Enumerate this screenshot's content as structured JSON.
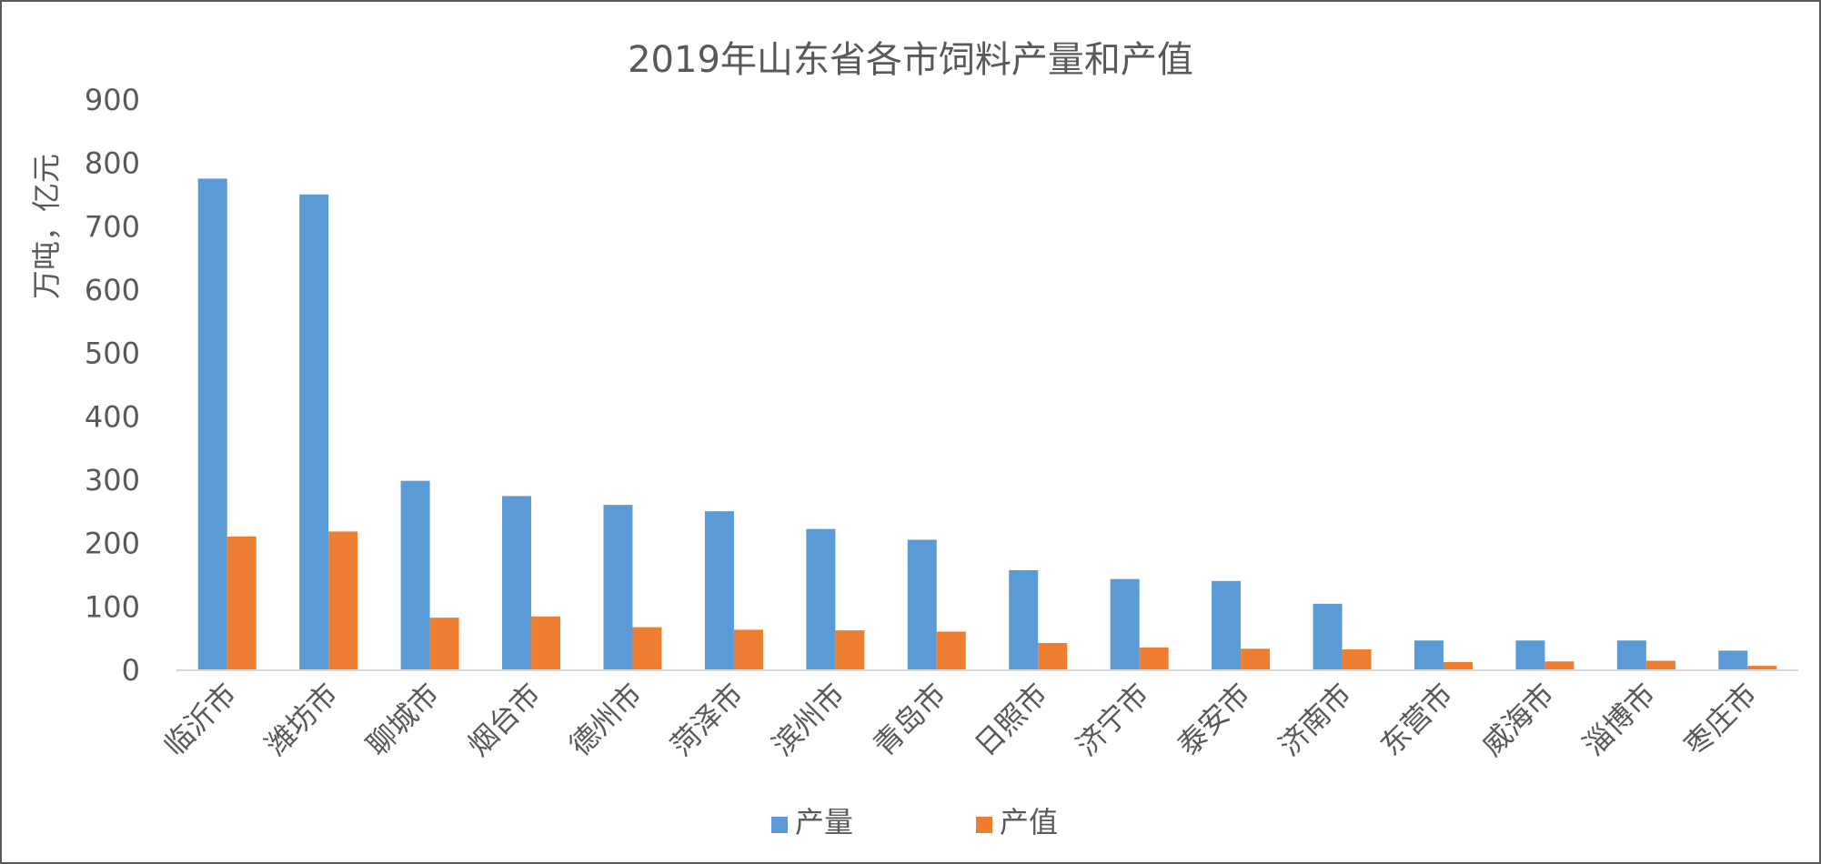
{
  "chart_data": {
    "type": "bar",
    "title": "2019年山东省各市饲料产量和产值",
    "ylabel": "万吨，亿元",
    "xlabel": "",
    "ylim": [
      0,
      900
    ],
    "yticks": [
      0,
      100,
      200,
      300,
      400,
      500,
      600,
      700,
      800,
      900
    ],
    "grid": false,
    "legend_position": "bottom",
    "categories": [
      "临沂市",
      "潍坊市",
      "聊城市",
      "烟台市",
      "德州市",
      "菏泽市",
      "滨州市",
      "青岛市",
      "日照市",
      "济宁市",
      "泰安市",
      "济南市",
      "东营市",
      "威海市",
      "淄博市",
      "枣庄市"
    ],
    "series": [
      {
        "name": "产量",
        "color": "#5B9BD5",
        "values": [
          776,
          751,
          299,
          275,
          261,
          251,
          223,
          206,
          158,
          144,
          141,
          105,
          47,
          47,
          47,
          31
        ]
      },
      {
        "name": "产值",
        "color": "#ED7D31",
        "values": [
          211,
          219,
          83,
          85,
          68,
          64,
          63,
          61,
          43,
          36,
          34,
          33,
          13,
          14,
          15,
          7
        ]
      }
    ]
  }
}
